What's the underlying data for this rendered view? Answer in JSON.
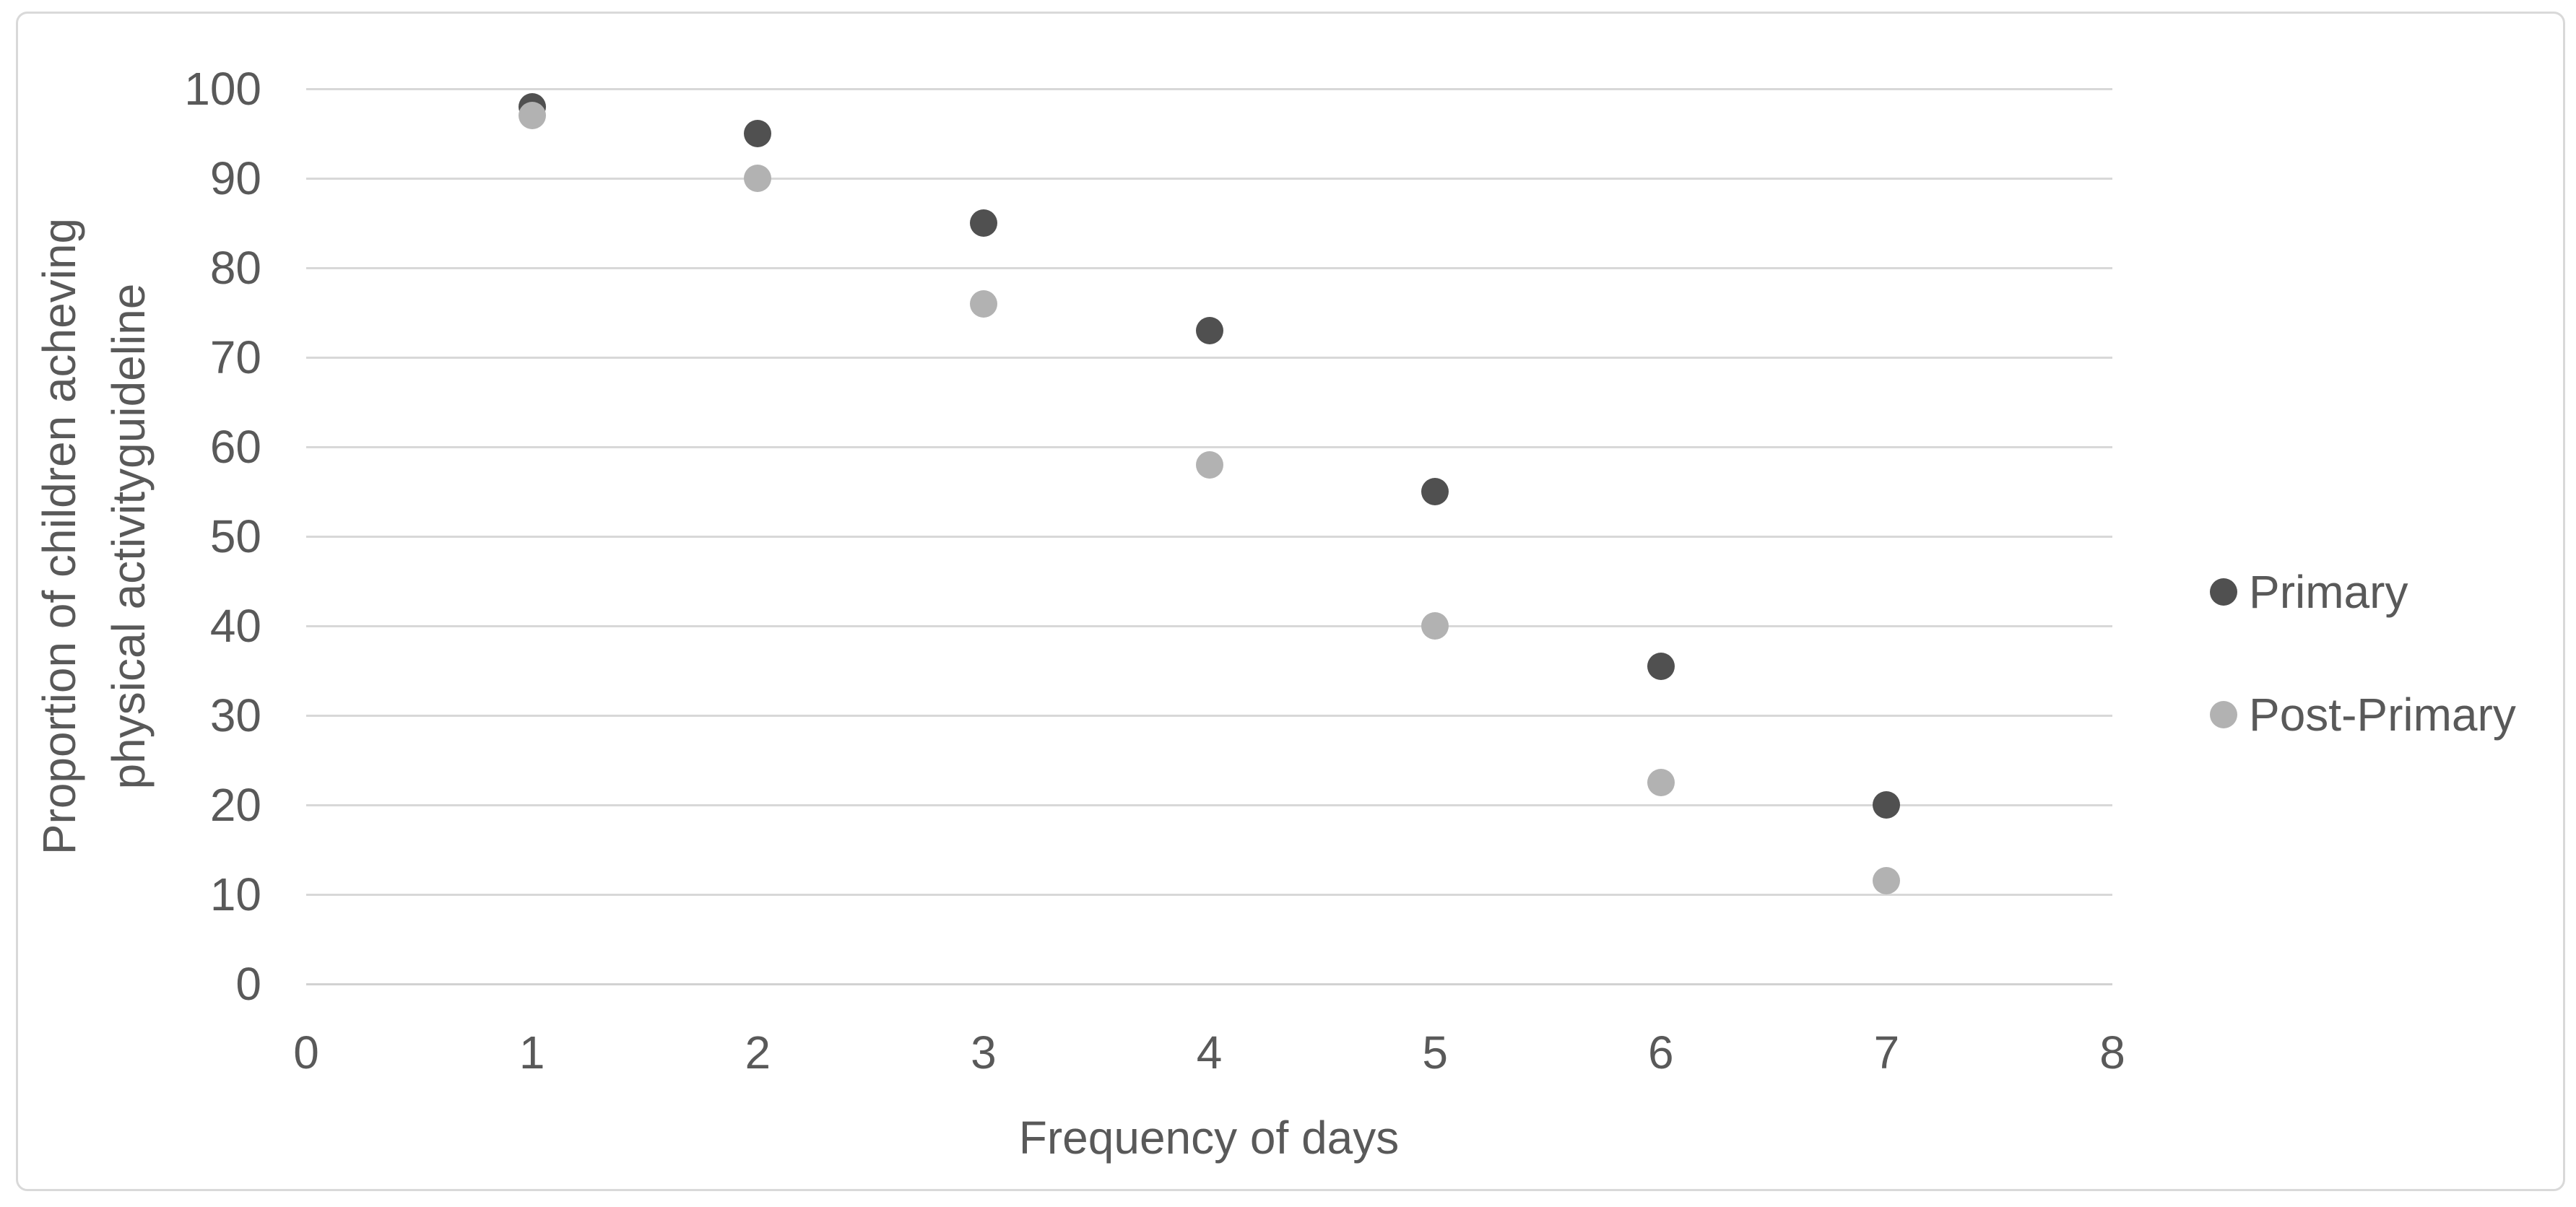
{
  "chart_data": {
    "type": "scatter",
    "x": [
      1,
      2,
      3,
      4,
      5,
      6,
      7
    ],
    "series": [
      {
        "name": "Primary",
        "color": "#505050",
        "values": [
          98,
          95,
          85,
          73,
          55,
          35.5,
          20
        ]
      },
      {
        "name": "Post-Primary",
        "color": "#b2b2b2",
        "values": [
          97,
          90,
          76,
          58,
          40,
          22.5,
          11.5
        ]
      }
    ],
    "title": "",
    "xlabel": "Frequency of days",
    "ylabel": "Proportion of children acheving physical activityguideline",
    "ylabel_lines": [
      "Proportion of children acheving",
      "physical activityguideline"
    ],
    "xlim": [
      0,
      8
    ],
    "ylim": [
      0,
      100
    ],
    "x_ticks": [
      0,
      1,
      2,
      3,
      4,
      5,
      6,
      7,
      8
    ],
    "y_ticks": [
      0,
      10,
      20,
      30,
      40,
      50,
      60,
      70,
      80,
      90,
      100
    ],
    "grid": true,
    "legend_position": "right-middle"
  },
  "legend": {
    "items": [
      {
        "label": "Primary",
        "color": "#505050"
      },
      {
        "label": "Post-Primary",
        "color": "#b2b2b2"
      }
    ]
  },
  "colors": {
    "background": "#ffffff",
    "chart_border": "#d9d9d9",
    "gridline": "#d8d8d8",
    "text": "#595959"
  }
}
